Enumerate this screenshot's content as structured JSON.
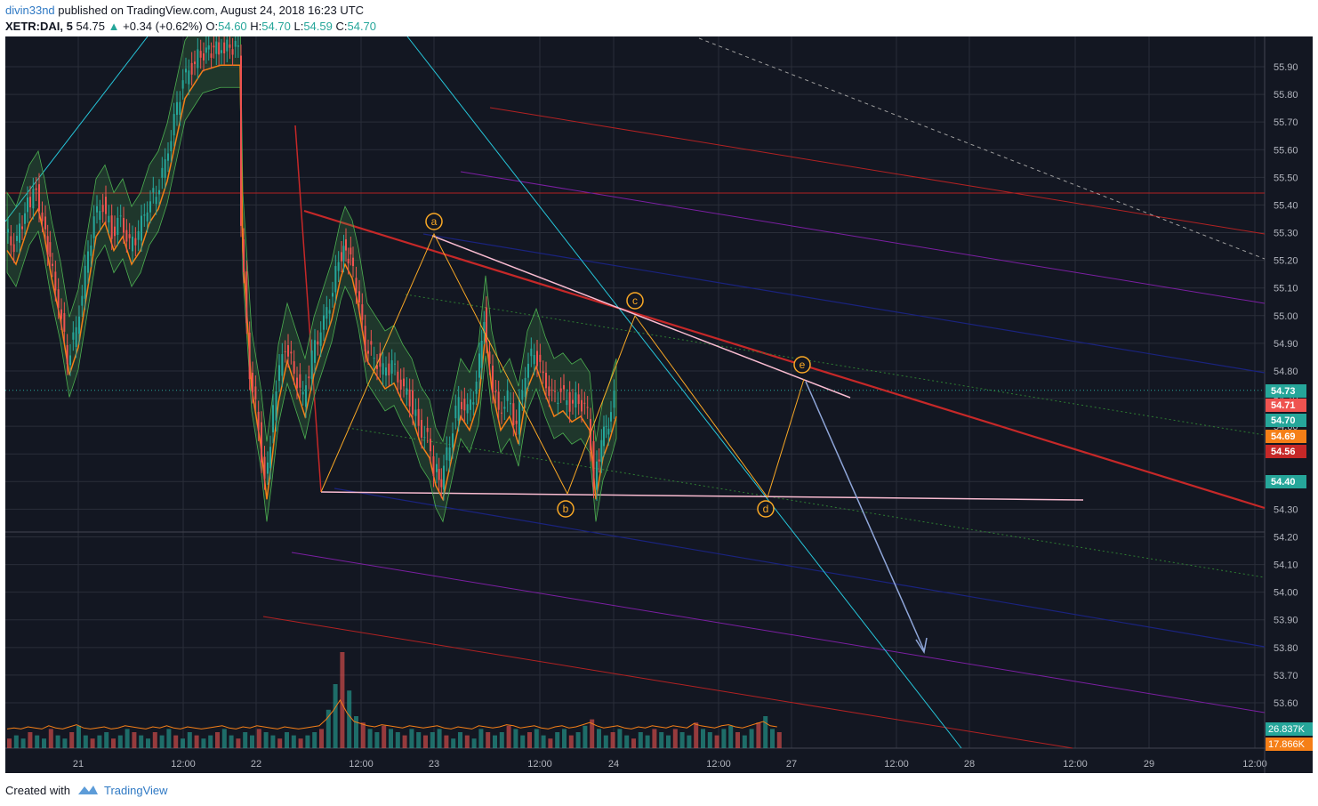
{
  "header": {
    "author": "divin33nd",
    "published_text": "published on TradingView.com, August 24, 2018 16:23 UTC",
    "symbol": "XETR:DAI, 5",
    "price": "54.75",
    "change_arrow": "▲",
    "change": "+0.34 (+0.62%)",
    "o_label": "O:",
    "o_value": "54.60",
    "h_label": "H:",
    "h_value": "54.70",
    "l_label": "L:",
    "l_value": "54.59",
    "c_label": "C:",
    "c_value": "54.70"
  },
  "footer": {
    "created_with": "Created with",
    "brand": "TradingView"
  },
  "colors": {
    "background": "#131722",
    "up_candle": "#26a69a",
    "down_candle": "#ef5350",
    "grid": "#2a2e39"
  },
  "chart_data": {
    "type": "candlestick",
    "symbol": "XETR:DAI",
    "interval": "5",
    "y_axis": {
      "ticks": [
        "55.90",
        "55.80",
        "55.70",
        "55.60",
        "55.50",
        "55.40",
        "55.30",
        "55.20",
        "55.10",
        "55.00",
        "54.90",
        "54.80",
        "54.70",
        "54.60",
        "54.50",
        "54.40",
        "54.30",
        "54.20",
        "54.10",
        "54.00",
        "53.90",
        "53.80",
        "53.70",
        "53.60"
      ],
      "ylim": [
        53.52,
        55.97
      ]
    },
    "x_axis": {
      "ticks": [
        "21",
        "12:00",
        "22",
        "12:00",
        "23",
        "12:00",
        "24",
        "12:00",
        "27",
        "12:00",
        "28",
        "12:00",
        "29",
        "12:00"
      ]
    },
    "price_labels": [
      {
        "value": "54.73",
        "color": "#26a69a"
      },
      {
        "value": "54.71",
        "color": "#ef5350"
      },
      {
        "value": "54.70",
        "color": "#26a69a"
      },
      {
        "value": "54.69",
        "color": "#f57f17"
      },
      {
        "value": "54.56",
        "color": "#c62828"
      },
      {
        "value": "54.40",
        "color": "#26a69a"
      }
    ],
    "volume_labels": [
      {
        "value": "26.837K",
        "color": "#26a69a"
      },
      {
        "value": "17.866K",
        "color": "#f57f17"
      }
    ],
    "wave_labels": [
      "a",
      "b",
      "c",
      "d",
      "e"
    ],
    "price_path": [
      [
        0,
        55.3
      ],
      [
        10,
        55.25
      ],
      [
        25,
        55.4
      ],
      [
        35,
        55.45
      ],
      [
        42,
        55.35
      ],
      [
        50,
        55.2
      ],
      [
        60,
        55.05
      ],
      [
        70,
        54.85
      ],
      [
        80,
        54.95
      ],
      [
        90,
        55.15
      ],
      [
        100,
        55.35
      ],
      [
        110,
        55.4
      ],
      [
        120,
        55.3
      ],
      [
        130,
        55.35
      ],
      [
        140,
        55.25
      ],
      [
        150,
        55.3
      ],
      [
        160,
        55.4
      ],
      [
        170,
        55.45
      ],
      [
        180,
        55.55
      ],
      [
        190,
        55.7
      ],
      [
        200,
        55.85
      ],
      [
        210,
        55.9
      ],
      [
        220,
        55.95
      ],
      [
        240,
        55.97
      ],
      [
        262,
        55.97
      ],
      [
        265,
        55.3
      ],
      [
        275,
        54.8
      ],
      [
        285,
        54.6
      ],
      [
        292,
        54.4
      ],
      [
        298,
        54.55
      ],
      [
        305,
        54.75
      ],
      [
        315,
        54.9
      ],
      [
        325,
        54.8
      ],
      [
        335,
        54.7
      ],
      [
        345,
        54.85
      ],
      [
        355,
        54.95
      ],
      [
        365,
        55.05
      ],
      [
        375,
        55.2
      ],
      [
        380,
        55.25
      ],
      [
        388,
        55.2
      ],
      [
        395,
        55.1
      ],
      [
        405,
        54.9
      ],
      [
        415,
        54.85
      ],
      [
        425,
        54.8
      ],
      [
        435,
        54.82
      ],
      [
        445,
        54.75
      ],
      [
        455,
        54.7
      ],
      [
        465,
        54.6
      ],
      [
        475,
        54.55
      ],
      [
        482,
        54.45
      ],
      [
        490,
        54.4
      ],
      [
        500,
        54.55
      ],
      [
        510,
        54.7
      ],
      [
        520,
        54.65
      ],
      [
        530,
        54.75
      ],
      [
        538,
        55.0
      ],
      [
        545,
        54.8
      ],
      [
        555,
        54.65
      ],
      [
        565,
        54.7
      ],
      [
        575,
        54.6
      ],
      [
        585,
        54.8
      ],
      [
        595,
        54.88
      ],
      [
        605,
        54.78
      ],
      [
        615,
        54.7
      ],
      [
        625,
        54.72
      ],
      [
        635,
        54.68
      ],
      [
        645,
        54.7
      ],
      [
        655,
        54.65
      ],
      [
        662,
        54.4
      ],
      [
        670,
        54.55
      ],
      [
        678,
        54.62
      ],
      [
        685,
        54.7
      ]
    ],
    "volume": [
      3,
      4,
      3,
      5,
      4,
      3,
      6,
      4,
      3,
      5,
      7,
      4,
      3,
      4,
      5,
      3,
      4,
      6,
      5,
      4,
      3,
      5,
      4,
      6,
      4,
      3,
      5,
      4,
      3,
      4,
      5,
      6,
      4,
      3,
      5,
      4,
      6,
      5,
      4,
      3,
      5,
      4,
      3,
      4,
      5,
      6,
      12,
      20,
      30,
      18,
      10,
      8,
      6,
      5,
      7,
      6,
      5,
      4,
      6,
      5,
      4,
      5,
      6,
      4,
      3,
      5,
      4,
      3,
      6,
      5,
      4,
      5,
      7,
      6,
      4,
      5,
      6,
      4,
      3,
      5,
      6,
      4,
      5,
      7,
      9,
      6,
      4,
      5,
      6,
      4,
      3,
      5,
      4,
      6,
      5,
      4,
      6,
      5,
      4,
      8,
      6,
      5,
      4,
      6,
      7,
      5,
      4,
      6,
      8,
      10,
      6,
      5
    ]
  }
}
